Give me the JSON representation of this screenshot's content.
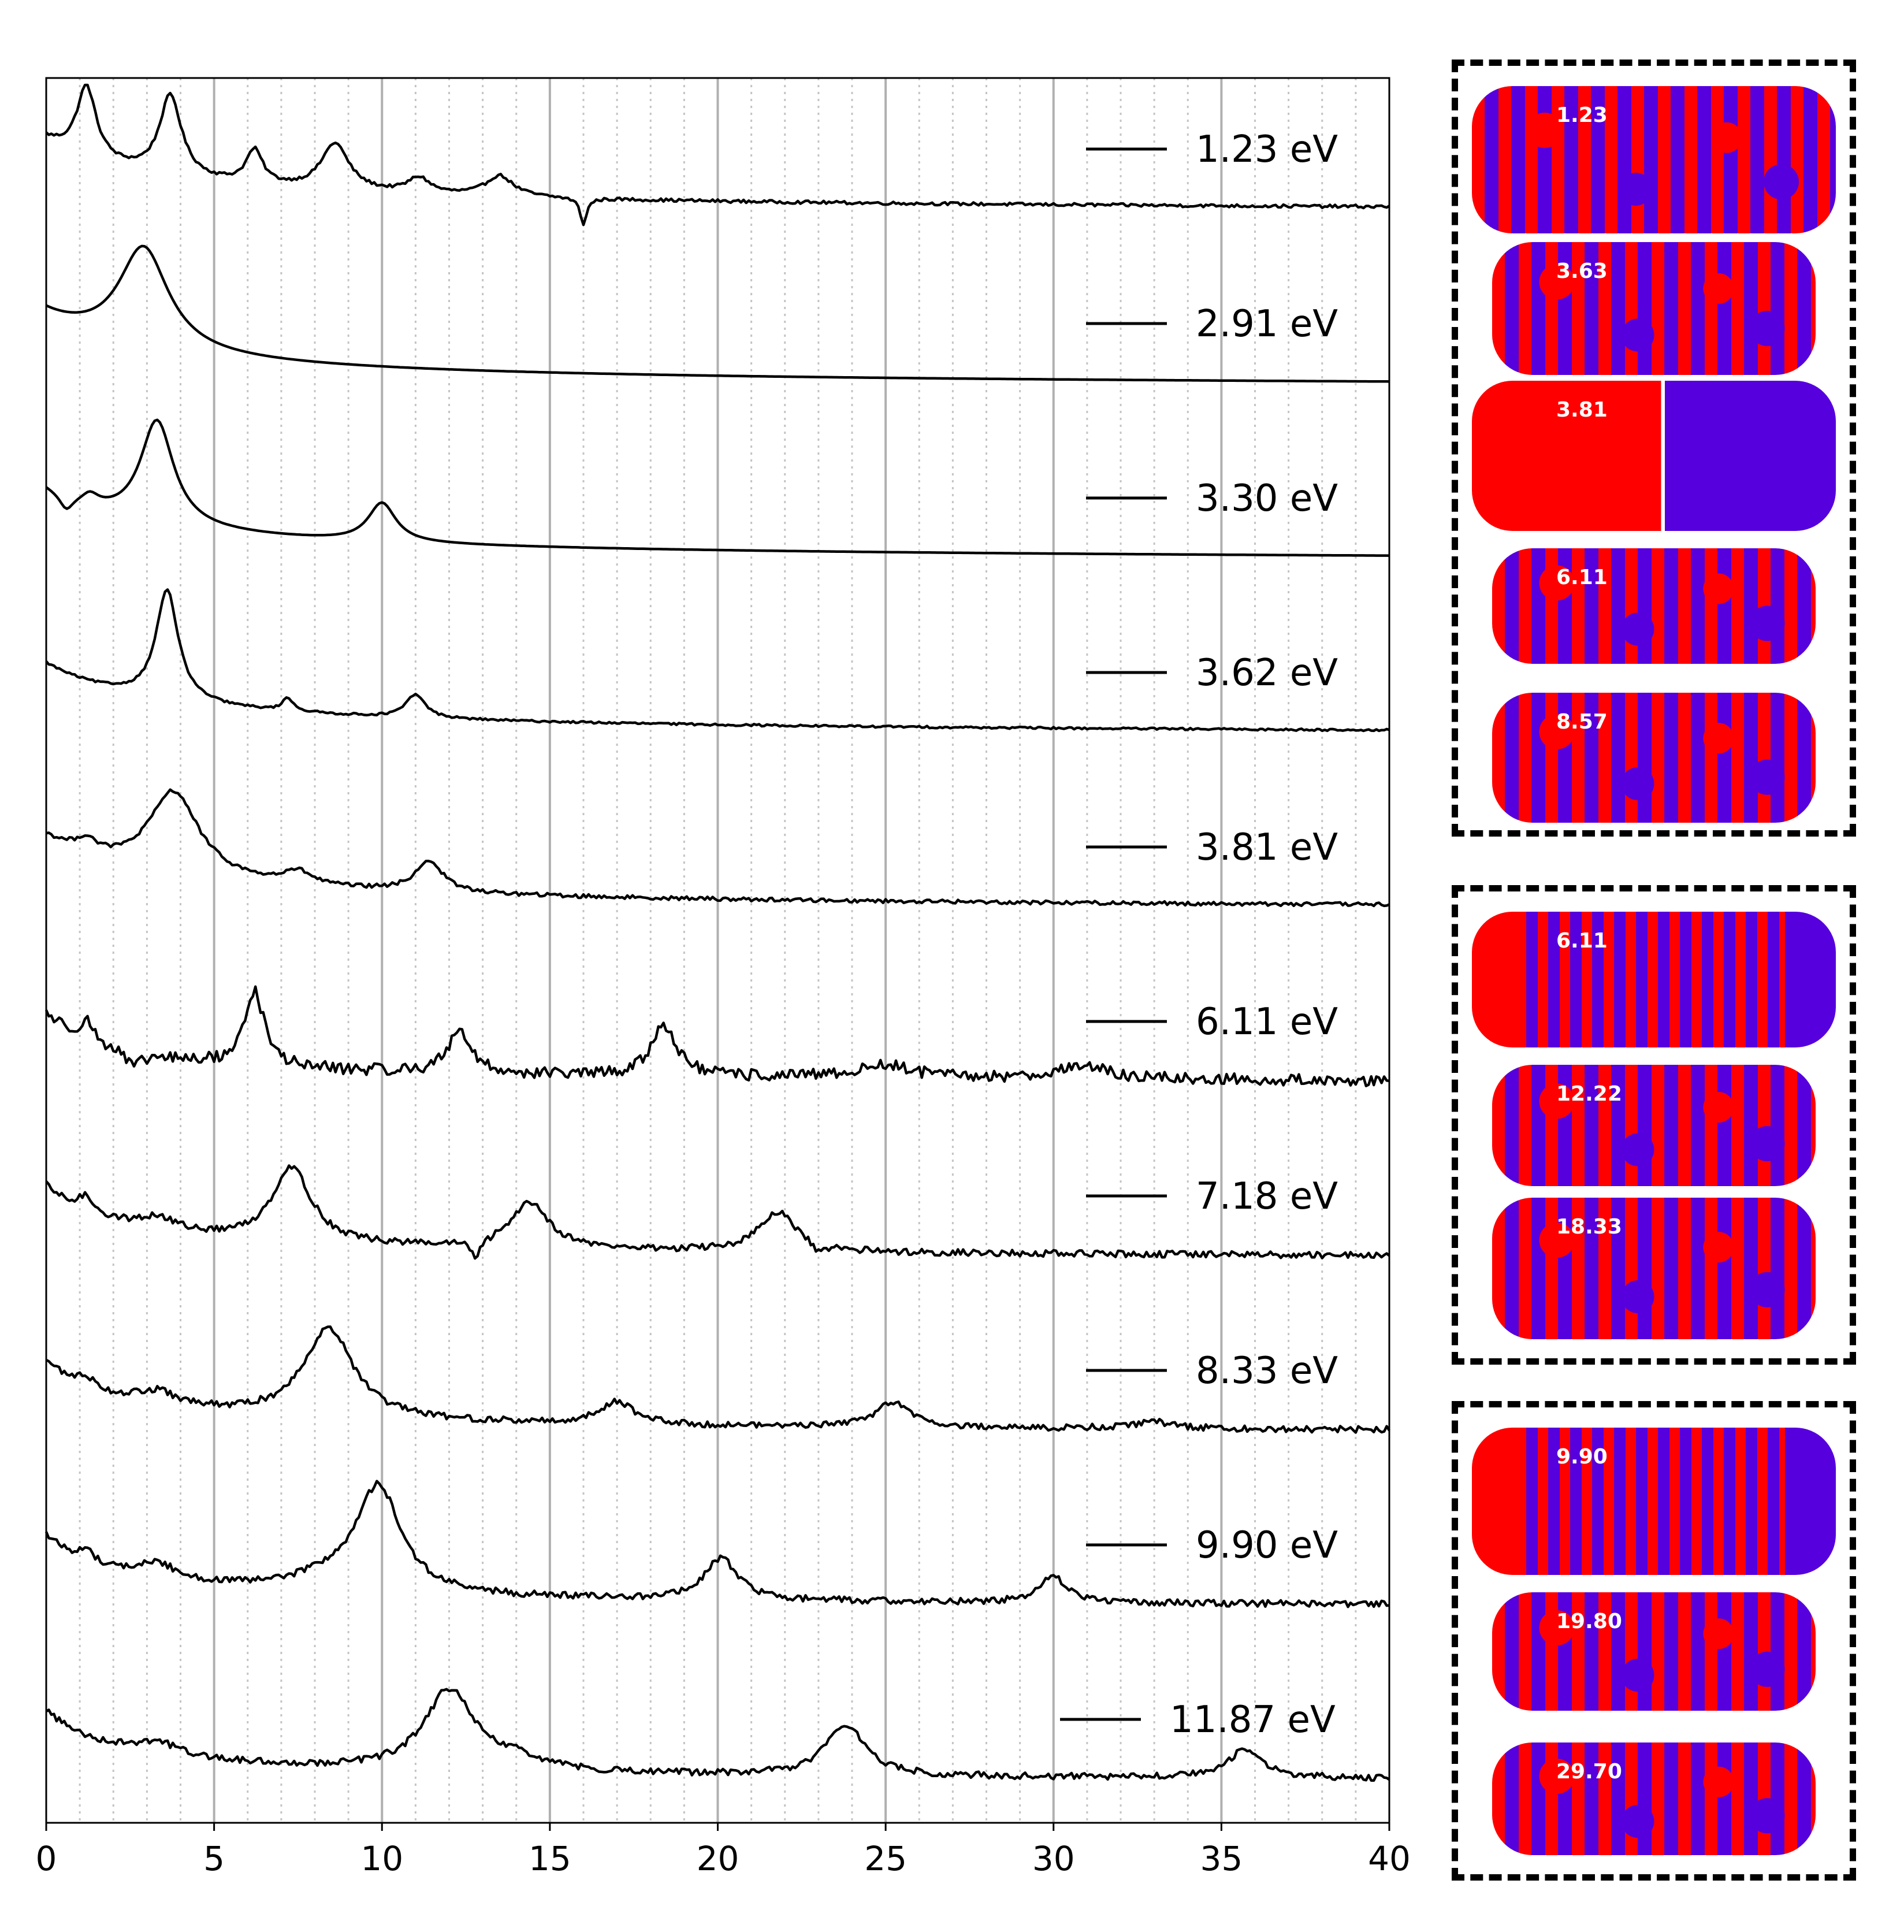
{
  "chart_data": {
    "type": "line",
    "xlim": [
      0,
      40
    ],
    "x_ticks": [
      "0",
      "5",
      "10",
      "15",
      "20",
      "25",
      "30",
      "35",
      "40"
    ],
    "grid": "vertical major solid every 5, minor dotted every 1",
    "legend_placement": "right of each trace",
    "line_color": "#000000",
    "series": [
      {
        "name": "1.23 eV",
        "background": [
          0.86,
          0.99,
          0.3,
          0.014
        ],
        "peaks": [
          [
            1.2,
            0.55,
            0.35
          ],
          [
            3.7,
            0.62,
            0.4
          ],
          [
            6.2,
            0.26,
            0.3
          ],
          [
            8.6,
            0.36,
            0.5
          ],
          [
            11.1,
            0.12,
            0.4
          ],
          [
            13.5,
            0.16,
            0.5
          ],
          [
            16.0,
            -0.2,
            0.12
          ]
        ],
        "noise": 0.012
      },
      {
        "name": "2.91 eV",
        "background": [
          0.86,
          0.99,
          0.3,
          0.018
        ],
        "peaks": [
          [
            2.9,
            0.78,
            0.9
          ]
        ],
        "noise": 0.0
      },
      {
        "name": "3.30 eV",
        "background": [
          0.86,
          0.99,
          0.3,
          0.014
        ],
        "peaks": [
          [
            0.6,
            -0.12,
            0.25
          ],
          [
            1.3,
            0.08,
            0.3
          ],
          [
            3.3,
            0.8,
            0.6
          ],
          [
            10.0,
            0.3,
            0.5
          ]
        ],
        "noise": 0.0
      },
      {
        "name": "3.62 eV",
        "background": [
          0.86,
          0.99,
          0.3,
          0.014
        ],
        "peaks": [
          [
            3.6,
            0.85,
            0.4
          ],
          [
            7.2,
            0.1,
            0.2
          ],
          [
            11.0,
            0.18,
            0.35
          ]
        ],
        "noise": 0.008
      },
      {
        "name": "3.81 eV",
        "background": [
          0.86,
          0.99,
          0.3,
          0.014
        ],
        "peaks": [
          [
            1.2,
            0.1,
            0.35
          ],
          [
            3.8,
            0.65,
            0.9
          ],
          [
            7.5,
            0.1,
            0.5
          ],
          [
            11.4,
            0.24,
            0.5
          ]
        ],
        "noise": 0.015
      },
      {
        "name": "6.11 eV",
        "background": [
          0.86,
          0.99,
          0.5,
          0.01
        ],
        "peaks": [
          [
            1.2,
            0.15,
            0.25
          ],
          [
            2.6,
            -0.12,
            0.3
          ],
          [
            6.2,
            0.58,
            0.35
          ],
          [
            12.3,
            0.34,
            0.4
          ],
          [
            18.4,
            0.4,
            0.45
          ],
          [
            25.0,
            0.1,
            1.0
          ],
          [
            30.8,
            0.1,
            1.0
          ]
        ],
        "noise": 0.045
      },
      {
        "name": "7.18 eV",
        "background": [
          0.86,
          0.99,
          0.5,
          0.01
        ],
        "peaks": [
          [
            1.2,
            0.12,
            0.3
          ],
          [
            3.3,
            0.1,
            0.7
          ],
          [
            7.3,
            0.58,
            0.7
          ],
          [
            14.4,
            0.36,
            0.7
          ],
          [
            21.8,
            0.3,
            0.7
          ],
          [
            12.8,
            -0.15,
            0.15
          ],
          [
            23.0,
            -0.08,
            0.2
          ]
        ],
        "noise": 0.025
      },
      {
        "name": "8.33 eV",
        "background": [
          0.86,
          0.99,
          0.5,
          0.01
        ],
        "peaks": [
          [
            1.2,
            0.08,
            0.3
          ],
          [
            3.3,
            0.1,
            0.7
          ],
          [
            8.4,
            0.7,
            0.9
          ],
          [
            17.0,
            0.18,
            0.6
          ],
          [
            25.2,
            0.2,
            0.6
          ],
          [
            33.0,
            0.05,
            0.8
          ]
        ],
        "noise": 0.025
      },
      {
        "name": "9.90 eV",
        "background": [
          0.86,
          0.99,
          0.5,
          0.01
        ],
        "peaks": [
          [
            1.2,
            0.08,
            0.3
          ],
          [
            3.3,
            0.12,
            0.7
          ],
          [
            9.9,
            0.8,
            0.8
          ],
          [
            20.1,
            0.32,
            0.6
          ],
          [
            30.0,
            0.2,
            0.5
          ],
          [
            8.5,
            0.1,
            1.5
          ]
        ],
        "noise": 0.025
      },
      {
        "name": "11.87 eV",
        "background": [
          0.86,
          0.99,
          0.5,
          0.01
        ],
        "peaks": [
          [
            3.3,
            0.1,
            0.8
          ],
          [
            12.0,
            0.62,
            0.9
          ],
          [
            23.8,
            0.4,
            0.7
          ],
          [
            35.7,
            0.22,
            0.6
          ],
          [
            14.0,
            0.08,
            1.0
          ]
        ],
        "noise": 0.025
      }
    ]
  },
  "panels": [
    {
      "name": "panel-top",
      "items": [
        {
          "label": "1.23",
          "pattern": "mixed",
          "left_color": "#ff0000",
          "right_color": "#5500dd"
        },
        {
          "label": "3.63",
          "pattern": "mixed",
          "left_color": "#5500dd",
          "right_color": "#ff0000"
        },
        {
          "label": "3.81",
          "pattern": "dipole",
          "left_color": "#ff0000",
          "right_color": "#5500dd"
        },
        {
          "label": "6.11",
          "pattern": "mixed",
          "left_color": "#ff0000",
          "right_color": "#ff0000"
        },
        {
          "label": "8.57",
          "pattern": "mixed",
          "left_color": "#ff0000",
          "right_color": "#5500dd"
        }
      ]
    },
    {
      "name": "panel-middle",
      "items": [
        {
          "label": "6.11",
          "pattern": "striped",
          "left_color": "#ff0000",
          "right_color": "#5500dd"
        },
        {
          "label": "12.22",
          "pattern": "mixed",
          "left_color": "#ff0000",
          "right_color": "#ff0000"
        },
        {
          "label": "18.33",
          "pattern": "mixed",
          "left_color": "#5500dd",
          "right_color": "#ff0000"
        }
      ]
    },
    {
      "name": "panel-bottom",
      "items": [
        {
          "label": "9.90",
          "pattern": "striped",
          "left_color": "#ff0000",
          "right_color": "#5500dd"
        },
        {
          "label": "19.80",
          "pattern": "mixed",
          "left_color": "#ff0000",
          "right_color": "#5500dd"
        },
        {
          "label": "29.70",
          "pattern": "mixed",
          "left_color": "#5500dd",
          "right_color": "#ff0000"
        }
      ]
    }
  ],
  "colors": {
    "red": "#ff0000",
    "blue": "#5500dd"
  }
}
